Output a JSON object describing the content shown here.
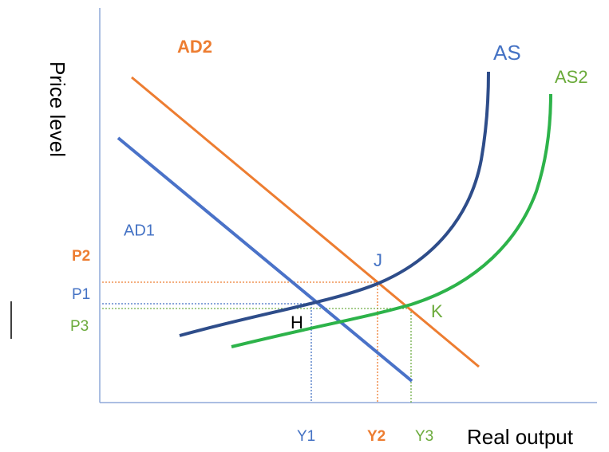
{
  "axes": {
    "y_label": "Price level",
    "x_label": "Real output"
  },
  "curves": [
    {
      "label": "AD1"
    },
    {
      "label": "AD2"
    },
    {
      "label": "AS"
    },
    {
      "label": "AS2"
    }
  ],
  "points": [
    {
      "label": "J"
    },
    {
      "label": "H"
    },
    {
      "label": "K"
    }
  ],
  "price_levels": [
    {
      "label": "P2"
    },
    {
      "label": "P1"
    },
    {
      "label": "P3"
    }
  ],
  "output_levels": [
    {
      "label": "Y1"
    },
    {
      "label": "Y2"
    },
    {
      "label": "Y3"
    }
  ]
}
